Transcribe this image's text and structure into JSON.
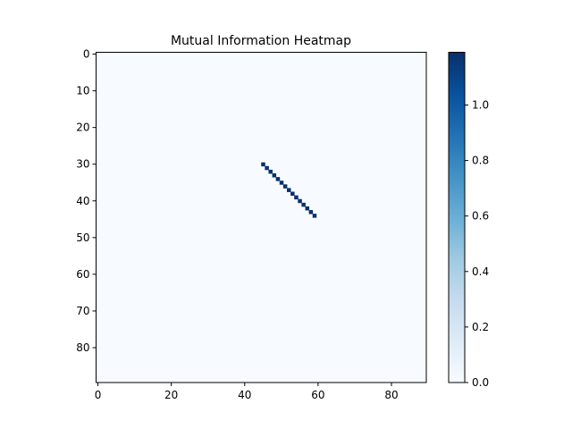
{
  "chart_data": {
    "type": "heatmap",
    "title": "Mutual Information Heatmap",
    "xlabel": "",
    "ylabel": "",
    "grid": false,
    "matrix_size": 90,
    "x_ticks": [
      0,
      20,
      40,
      60,
      80
    ],
    "y_ticks": [
      0,
      10,
      20,
      30,
      40,
      50,
      60,
      70,
      80
    ],
    "background_value": 0.0,
    "highlight_cells": [
      {
        "row": 30,
        "col": 45,
        "value": 1.19
      },
      {
        "row": 31,
        "col": 46,
        "value": 1.19
      },
      {
        "row": 32,
        "col": 47,
        "value": 1.19
      },
      {
        "row": 33,
        "col": 48,
        "value": 1.19
      },
      {
        "row": 34,
        "col": 49,
        "value": 1.19
      },
      {
        "row": 35,
        "col": 50,
        "value": 1.19
      },
      {
        "row": 36,
        "col": 51,
        "value": 1.19
      },
      {
        "row": 37,
        "col": 52,
        "value": 1.19
      },
      {
        "row": 38,
        "col": 53,
        "value": 1.19
      },
      {
        "row": 39,
        "col": 54,
        "value": 1.19
      },
      {
        "row": 40,
        "col": 55,
        "value": 1.19
      },
      {
        "row": 41,
        "col": 56,
        "value": 1.19
      },
      {
        "row": 42,
        "col": 57,
        "value": 1.19
      },
      {
        "row": 43,
        "col": 58,
        "value": 1.19
      },
      {
        "row": 44,
        "col": 59,
        "value": 1.19
      }
    ],
    "colorbar": {
      "colormap": "Blues",
      "vmin": 0.0,
      "vmax": 1.19,
      "ticks": [
        "0.0",
        "0.2",
        "0.4",
        "0.6",
        "0.8",
        "1.0"
      ]
    },
    "colors": {
      "low": "#f7fbff",
      "high": "#08306b"
    }
  }
}
